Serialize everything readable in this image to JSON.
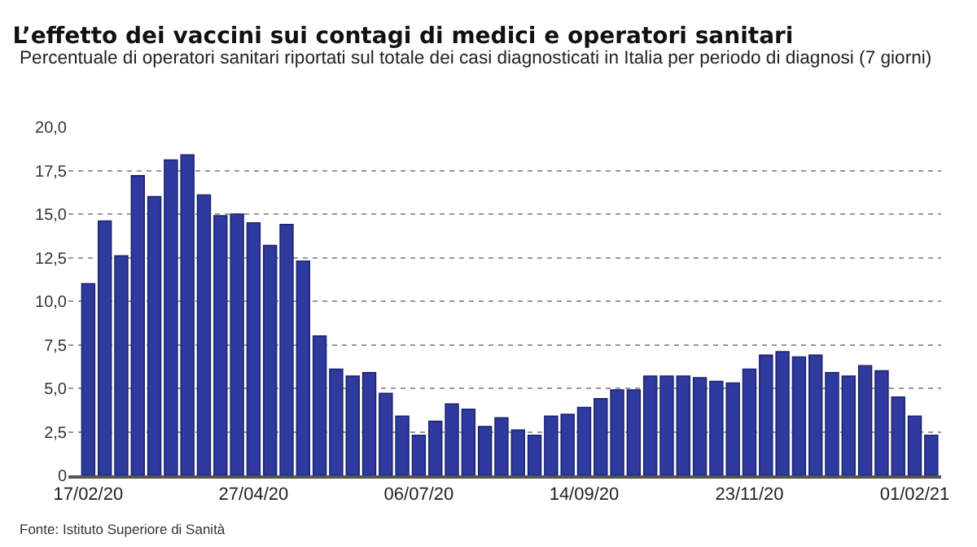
{
  "chart_data": {
    "type": "bar",
    "title": "L’effetto dei vaccini sui contagi di medici e operatori sanitari",
    "subtitle": "Percentuale di operatori sanitari riportati sul totale dei casi diagnosticati in Italia per periodo di diagnosi (7 giorni)",
    "categories": [
      "17/02/20",
      null,
      null,
      null,
      null,
      null,
      null,
      null,
      null,
      null,
      "27/04/20",
      null,
      null,
      null,
      null,
      null,
      null,
      null,
      null,
      null,
      "06/07/20",
      null,
      null,
      null,
      null,
      null,
      null,
      null,
      null,
      null,
      "14/09/20",
      null,
      null,
      null,
      null,
      null,
      null,
      null,
      null,
      null,
      "23/11/20",
      null,
      null,
      null,
      null,
      null,
      null,
      null,
      null,
      null,
      "01/02/21",
      null
    ],
    "values": [
      11.0,
      14.6,
      12.6,
      17.2,
      16.0,
      18.1,
      18.4,
      16.1,
      14.9,
      15.0,
      14.5,
      13.2,
      14.4,
      12.3,
      8.0,
      6.1,
      5.7,
      5.9,
      4.7,
      3.4,
      2.3,
      3.1,
      4.1,
      3.8,
      2.8,
      3.3,
      2.6,
      2.3,
      3.4,
      3.5,
      3.9,
      4.4,
      4.9,
      4.9,
      5.7,
      5.7,
      5.7,
      5.6,
      5.4,
      5.3,
      6.1,
      6.9,
      7.1,
      6.8,
      6.9,
      5.9,
      5.7,
      6.3,
      6.0,
      4.5,
      3.4,
      2.3
    ],
    "color": "#2e3a9e",
    "ylim": [
      0,
      20
    ],
    "yticks": [
      0,
      {
        "value": 2.5,
        "label": "2,5"
      },
      {
        "value": 5,
        "label": "5,0"
      },
      {
        "value": 7.5,
        "label": "7,5"
      },
      {
        "value": 10,
        "label": "10,0"
      },
      {
        "value": 12.5,
        "label": "12,5"
      },
      {
        "value": 15,
        "label": "15,0"
      },
      {
        "value": 17.5,
        "label": "17,5"
      },
      {
        "value": 20,
        "label": "20,0"
      }
    ],
    "grid": "y",
    "annotations": [
      "Fonte: Istituto Superiore di Sanità"
    ]
  }
}
